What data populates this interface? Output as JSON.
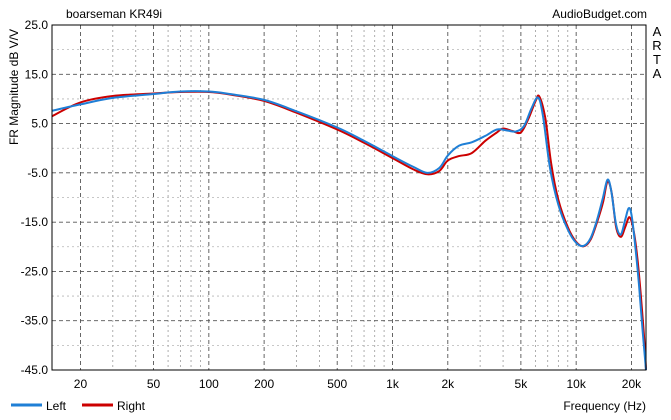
{
  "chart_data": {
    "type": "line",
    "title": "boarseman KR49i",
    "source": "AudioBudget.com",
    "side_label": [
      "A",
      "R",
      "T",
      "A"
    ],
    "ylabel": "FR Magnitude dB V/V",
    "xlabel": "Frequency (Hz)",
    "xscale": "log",
    "xlim": [
      14,
      24000
    ],
    "ylim": [
      -45,
      25
    ],
    "grid": true,
    "yticks": [
      25,
      15,
      5,
      -5,
      -15,
      -25,
      -35,
      -45
    ],
    "ytick_labels": [
      "25.0",
      "15.0",
      "5.0",
      "-5.0",
      "-15.0",
      "-25.0",
      "-35.0",
      "-45.0"
    ],
    "xticks": [
      20,
      50,
      100,
      200,
      500,
      1000,
      2000,
      5000,
      10000,
      20000
    ],
    "xtick_labels": [
      "20",
      "50",
      "100",
      "200",
      "500",
      "1k",
      "2k",
      "5k",
      "10k",
      "20k"
    ],
    "legend_position": "bottom-left",
    "series": [
      {
        "name": "Left",
        "color": "#1f7fd6",
        "points": [
          [
            14,
            7.6
          ],
          [
            20,
            8.9
          ],
          [
            30,
            10.2
          ],
          [
            50,
            11.0
          ],
          [
            70,
            11.5
          ],
          [
            100,
            11.5
          ],
          [
            130,
            11.0
          ],
          [
            200,
            9.8
          ],
          [
            300,
            7.5
          ],
          [
            500,
            4.2
          ],
          [
            700,
            1.5
          ],
          [
            1000,
            -1.6
          ],
          [
            1300,
            -3.8
          ],
          [
            1550,
            -5.0
          ],
          [
            1800,
            -4.0
          ],
          [
            2000,
            -1.5
          ],
          [
            2300,
            0.5
          ],
          [
            2700,
            1.2
          ],
          [
            3200,
            2.5
          ],
          [
            3700,
            3.8
          ],
          [
            4200,
            3.6
          ],
          [
            4700,
            3.4
          ],
          [
            5200,
            4.5
          ],
          [
            5700,
            8.0
          ],
          [
            6200,
            10.3
          ],
          [
            6600,
            6.5
          ],
          [
            7200,
            -4.0
          ],
          [
            8000,
            -11.5
          ],
          [
            9000,
            -16.5
          ],
          [
            10000,
            -19.2
          ],
          [
            11000,
            -19.8
          ],
          [
            12000,
            -18.2
          ],
          [
            13000,
            -14.5
          ],
          [
            14000,
            -10.0
          ],
          [
            14800,
            -6.4
          ],
          [
            15500,
            -8.5
          ],
          [
            16500,
            -15.5
          ],
          [
            17500,
            -17.5
          ],
          [
            18500,
            -14.5
          ],
          [
            19300,
            -12.2
          ],
          [
            20000,
            -13.5
          ],
          [
            21000,
            -20.0
          ],
          [
            22000,
            -28.0
          ],
          [
            23000,
            -37.0
          ],
          [
            24000,
            -45.0
          ]
        ]
      },
      {
        "name": "Right",
        "color": "#cc0000",
        "points": [
          [
            14,
            6.5
          ],
          [
            20,
            9.3
          ],
          [
            30,
            10.6
          ],
          [
            50,
            11.1
          ],
          [
            70,
            11.4
          ],
          [
            100,
            11.4
          ],
          [
            130,
            10.9
          ],
          [
            200,
            9.6
          ],
          [
            300,
            7.2
          ],
          [
            500,
            3.8
          ],
          [
            700,
            1.1
          ],
          [
            1000,
            -2.0
          ],
          [
            1300,
            -4.3
          ],
          [
            1550,
            -5.3
          ],
          [
            1800,
            -4.6
          ],
          [
            2000,
            -2.5
          ],
          [
            2300,
            -1.6
          ],
          [
            2700,
            -1.0
          ],
          [
            3200,
            1.5
          ],
          [
            3700,
            3.2
          ],
          [
            4000,
            4.0
          ],
          [
            4500,
            3.5
          ],
          [
            5000,
            3.2
          ],
          [
            5500,
            6.0
          ],
          [
            6000,
            9.5
          ],
          [
            6300,
            10.5
          ],
          [
            6800,
            6.0
          ],
          [
            7300,
            -3.0
          ],
          [
            8000,
            -10.5
          ],
          [
            9000,
            -16.0
          ],
          [
            10000,
            -19.0
          ],
          [
            11000,
            -19.9
          ],
          [
            12000,
            -18.5
          ],
          [
            13000,
            -15.0
          ],
          [
            14000,
            -11.0
          ],
          [
            14800,
            -6.8
          ],
          [
            15600,
            -9.0
          ],
          [
            16500,
            -16.0
          ],
          [
            17500,
            -18.0
          ],
          [
            18500,
            -16.0
          ],
          [
            19500,
            -14.0
          ],
          [
            20500,
            -16.5
          ],
          [
            21500,
            -22.0
          ],
          [
            22500,
            -30.0
          ],
          [
            23500,
            -39.0
          ],
          [
            24000,
            -45.0
          ]
        ]
      }
    ]
  }
}
